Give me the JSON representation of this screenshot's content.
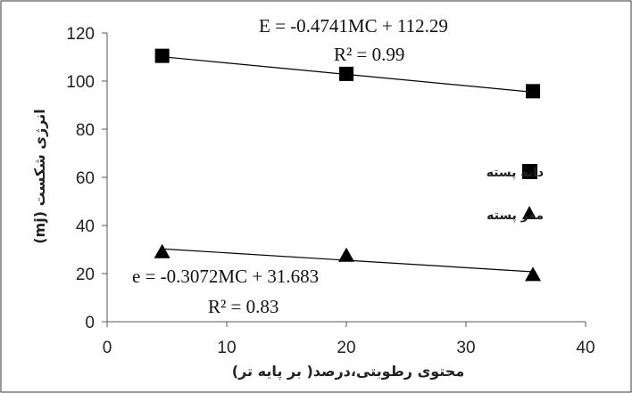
{
  "chart_data": {
    "type": "scatter",
    "xlabel": "محتوی رطوبتی،درصد( بر پایه تر)",
    "ylabel": "انرژی شکست (mj)",
    "xlim": [
      0,
      40
    ],
    "ylim": [
      0,
      120
    ],
    "xticks": [
      "0",
      "10",
      "20",
      "30",
      "40"
    ],
    "yticks": [
      "0",
      "20",
      "40",
      "60",
      "80",
      "100",
      "120"
    ],
    "grid": false,
    "legend_position": "right",
    "series": [
      {
        "name": "دانه پسته",
        "marker": "square",
        "color": "#000000",
        "x": [
          4.6,
          20.0,
          35.6
        ],
        "y": [
          110.5,
          103.0,
          95.8
        ],
        "trendline": {
          "slope": -0.4741,
          "intercept": 112.29
        },
        "equation": "E = -0.4741MC + 112.29",
        "r2": "R² = 0.99"
      },
      {
        "name": "مغز پسته",
        "marker": "triangle",
        "color": "#000000",
        "x": [
          4.6,
          20.0,
          35.6
        ],
        "y": [
          29.0,
          27.5,
          19.5
        ],
        "trendline": {
          "slope": -0.3072,
          "intercept": 31.683
        },
        "equation": "e = -0.3072MC + 31.683",
        "r2": "R² = 0.83"
      }
    ]
  }
}
